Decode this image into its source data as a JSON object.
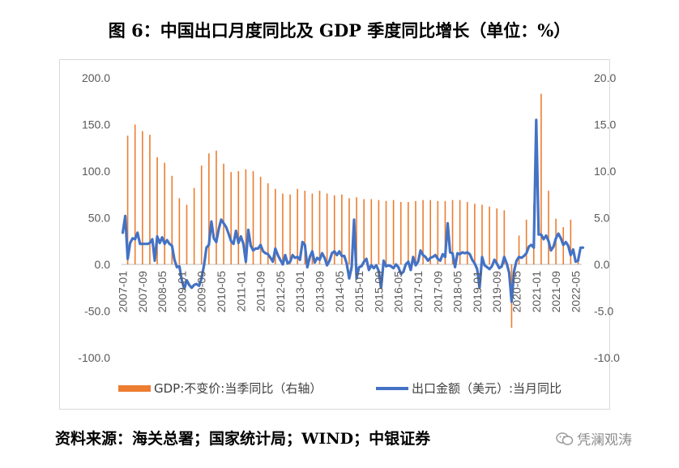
{
  "title": "图 6：中国出口月度同比及 GDP 季度同比增长（单位：%）",
  "source": "资料来源：海关总署；国家统计局；WIND；中银证券",
  "watermark": "凭澜观涛",
  "chart_data": {
    "type": "line+bar",
    "left_axis": {
      "min": -100,
      "max": 200,
      "ticks": [
        "200.0",
        "150.0",
        "100.0",
        "50.0",
        "0.0",
        "-50.0",
        "-100.0"
      ]
    },
    "right_axis": {
      "min": -10,
      "max": 20,
      "ticks": [
        "20.0",
        "15.0",
        "10.0",
        "5.0",
        "0.0",
        "-5.0",
        "-10.0"
      ]
    },
    "x_tick_labels": [
      "2007-01",
      "2007-09",
      "2008-05",
      "2009-01",
      "2009-09",
      "2010-05",
      "2011-01",
      "2011-09",
      "2012-05",
      "2013-01",
      "2013-09",
      "2014-05",
      "2015-01",
      "2015-09",
      "2016-05",
      "2017-01",
      "2017-09",
      "2018-05",
      "2019-01",
      "2019-09",
      "2020-05",
      "2021-01",
      "2021-09",
      "2022-05"
    ],
    "series": [
      {
        "name": "GDP:不变价:当季同比（右轴）",
        "axis": "right",
        "color": "#ed7d31",
        "type": "bar",
        "x": [
          "2007-03",
          "2007-06",
          "2007-09",
          "2007-12",
          "2008-03",
          "2008-06",
          "2008-09",
          "2008-12",
          "2009-03",
          "2009-06",
          "2009-09",
          "2009-12",
          "2010-03",
          "2010-06",
          "2010-09",
          "2010-12",
          "2011-03",
          "2011-06",
          "2011-09",
          "2011-12",
          "2012-03",
          "2012-06",
          "2012-09",
          "2012-12",
          "2013-03",
          "2013-06",
          "2013-09",
          "2013-12",
          "2014-03",
          "2014-06",
          "2014-09",
          "2014-12",
          "2015-03",
          "2015-06",
          "2015-09",
          "2015-12",
          "2016-03",
          "2016-06",
          "2016-09",
          "2016-12",
          "2017-03",
          "2017-06",
          "2017-09",
          "2017-12",
          "2018-03",
          "2018-06",
          "2018-09",
          "2018-12",
          "2019-03",
          "2019-06",
          "2019-09",
          "2019-12",
          "2020-03",
          "2020-06",
          "2020-09",
          "2020-12",
          "2021-03",
          "2021-06",
          "2021-09",
          "2021-12",
          "2022-03",
          "2022-06"
        ],
        "values": [
          13.8,
          15.0,
          14.3,
          13.9,
          11.5,
          10.9,
          9.5,
          7.1,
          6.4,
          8.2,
          10.6,
          11.9,
          12.2,
          10.8,
          9.9,
          10.0,
          10.2,
          10.0,
          9.4,
          8.7,
          8.1,
          7.6,
          7.5,
          8.1,
          7.9,
          7.6,
          7.9,
          7.6,
          7.4,
          7.5,
          7.1,
          7.2,
          7.0,
          7.0,
          6.9,
          6.8,
          6.9,
          6.7,
          6.7,
          6.8,
          6.9,
          6.9,
          6.8,
          6.8,
          6.9,
          6.9,
          6.7,
          6.5,
          6.4,
          6.2,
          6.0,
          5.8,
          -6.8,
          3.1,
          4.8,
          6.4,
          18.3,
          7.9,
          4.9,
          4.0,
          4.8,
          0.4
        ]
      },
      {
        "name": "出口金额（美元）:当月同比",
        "axis": "left",
        "color": "#4472c4",
        "type": "line",
        "start": "2007-01",
        "values": [
          34,
          52,
          6,
          23,
          28,
          27,
          34,
          22,
          22,
          22,
          22,
          23,
          27,
          4,
          30,
          23,
          29,
          22,
          26,
          22,
          20,
          5,
          -3,
          -2,
          -17,
          -26,
          -17,
          -22,
          -25,
          -22,
          -21,
          -23,
          -15,
          -1,
          18,
          21,
          46,
          28,
          24,
          38,
          48,
          44,
          40,
          33,
          25,
          22,
          36,
          23,
          30,
          22,
          3,
          37,
          20,
          15,
          17,
          17,
          21,
          14,
          12,
          11,
          7,
          3,
          17,
          10,
          5,
          0,
          10,
          1,
          3,
          10,
          7,
          8,
          5,
          24,
          21,
          -3,
          8,
          14,
          2,
          7,
          5,
          12,
          7,
          -1,
          4,
          12,
          14,
          10,
          14,
          9,
          9,
          1,
          -15,
          -3,
          48,
          -15,
          -3,
          -2,
          3,
          6,
          -6,
          -1,
          -4,
          -1,
          -7,
          -25,
          4,
          -2,
          -1,
          -2,
          -4,
          0,
          -3,
          -10,
          -8,
          0,
          3,
          -6,
          8,
          -1,
          3,
          15,
          10,
          8,
          4,
          7,
          8,
          10,
          6,
          4,
          11,
          8,
          44,
          13,
          12,
          -3,
          12,
          11,
          13,
          12,
          13,
          11,
          5,
          1,
          -5,
          -25,
          8,
          -1,
          -3,
          -5,
          -2,
          5,
          1,
          -4,
          -2,
          8,
          1,
          -9,
          -40,
          -7,
          4,
          8,
          7,
          9,
          12,
          19,
          21,
          18,
          155,
          32,
          32,
          27,
          31,
          25,
          15,
          19,
          28,
          33,
          28,
          21,
          24,
          20,
          10,
          16,
          3,
          4,
          18,
          18
        ]
      }
    ]
  }
}
